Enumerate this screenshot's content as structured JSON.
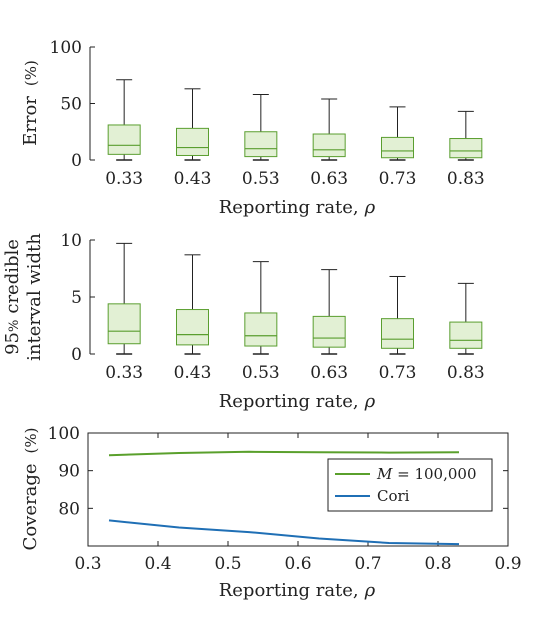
{
  "colors": {
    "box_stroke": "#5a9e2f",
    "box_fill": "#e2f0d4",
    "line_green": "#5aa02c",
    "line_blue": "#1f6fb5",
    "axis": "#222222"
  },
  "chart_data": [
    {
      "type": "box",
      "ylabel_main": "Error",
      "ylabel_unit": "(%)",
      "xlabel": "Reporting rate,",
      "xlabel_symbol": "ρ",
      "ylim": [
        0,
        100
      ],
      "yticks": [
        "0",
        "50",
        "100"
      ],
      "categories": [
        "0.33",
        "0.43",
        "0.53",
        "0.63",
        "0.73",
        "0.83"
      ],
      "boxes": [
        {
          "min": 0,
          "q1": 5,
          "median": 13,
          "q3": 31,
          "max": 71
        },
        {
          "min": 0,
          "q1": 4,
          "median": 11,
          "q3": 28,
          "max": 63
        },
        {
          "min": 0,
          "q1": 3,
          "median": 10,
          "q3": 25,
          "max": 58
        },
        {
          "min": 0,
          "q1": 3,
          "median": 9,
          "q3": 23,
          "max": 54
        },
        {
          "min": 0,
          "q1": 2,
          "median": 8,
          "q3": 20,
          "max": 47
        },
        {
          "min": 0,
          "q1": 2,
          "median": 8,
          "q3": 19,
          "max": 43
        }
      ]
    },
    {
      "type": "box",
      "ylabel_line1_pct": "95",
      "ylabel_line1_pct_sign": "%",
      "ylabel_line1_rest": "credible",
      "ylabel_line2": "interval width",
      "xlabel": "Reporting rate,",
      "xlabel_symbol": "ρ",
      "ylim": [
        0,
        10
      ],
      "yticks": [
        "0",
        "5",
        "10"
      ],
      "categories": [
        "0.33",
        "0.43",
        "0.53",
        "0.63",
        "0.73",
        "0.83"
      ],
      "boxes": [
        {
          "min": 0,
          "q1": 0.9,
          "median": 2.0,
          "q3": 4.4,
          "max": 9.7
        },
        {
          "min": 0,
          "q1": 0.8,
          "median": 1.7,
          "q3": 3.9,
          "max": 8.7
        },
        {
          "min": 0,
          "q1": 0.7,
          "median": 1.6,
          "q3": 3.6,
          "max": 8.1
        },
        {
          "min": 0,
          "q1": 0.6,
          "median": 1.4,
          "q3": 3.3,
          "max": 7.4
        },
        {
          "min": 0,
          "q1": 0.5,
          "median": 1.3,
          "q3": 3.1,
          "max": 6.8
        },
        {
          "min": 0,
          "q1": 0.5,
          "median": 1.2,
          "q3": 2.8,
          "max": 6.2
        }
      ]
    },
    {
      "type": "line",
      "ylabel_main": "Coverage",
      "ylabel_unit": "(%)",
      "xlabel": "Reporting rate,",
      "xlabel_symbol": "ρ",
      "xlim": [
        0.3,
        0.9
      ],
      "ylim": [
        70,
        100
      ],
      "xticks": [
        "0.3",
        "0.4",
        "0.5",
        "0.6",
        "0.7",
        "0.8",
        "0.9"
      ],
      "yticks": [
        "80",
        "90",
        "100"
      ],
      "legend_position": "right",
      "series": [
        {
          "name_symbol": "M",
          "name_rest": " = 100,000",
          "color": "#5aa02c",
          "x": [
            0.33,
            0.43,
            0.53,
            0.63,
            0.73,
            0.83
          ],
          "y": [
            94.1,
            94.7,
            95.0,
            94.9,
            94.8,
            94.9
          ]
        },
        {
          "name": "Cori",
          "color": "#1f6fb5",
          "x": [
            0.33,
            0.43,
            0.53,
            0.63,
            0.73,
            0.83
          ],
          "y": [
            76.8,
            74.9,
            73.7,
            72.0,
            70.8,
            70.5
          ]
        }
      ]
    }
  ]
}
